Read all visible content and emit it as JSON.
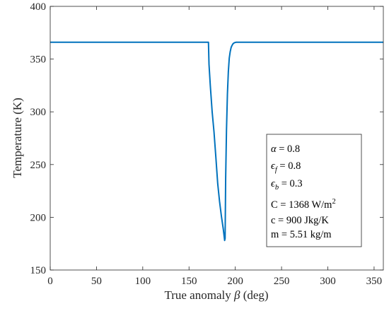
{
  "chart_data": {
    "type": "line",
    "xlabel": {
      "prefix": "True anomaly ",
      "symbol": "β",
      "suffix": " (deg)"
    },
    "ylabel": "Temperature (K)",
    "xlim": [
      0,
      360
    ],
    "ylim": [
      150,
      400
    ],
    "xticks": [
      "0",
      "50",
      "100",
      "150",
      "200",
      "250",
      "300",
      "350"
    ],
    "yticks": [
      "150",
      "200",
      "250",
      "300",
      "350",
      "400"
    ],
    "grid": false,
    "line_color": "#0072BD",
    "series": [
      {
        "x": [
          0,
          171,
          171.6,
          173,
          175,
          177,
          179,
          181,
          183,
          185,
          187,
          188.5,
          189,
          189.6,
          190.5,
          191.5,
          192.5,
          193.5,
          194.5,
          195.5,
          196.5,
          197.5,
          199,
          201,
          203,
          206,
          210,
          360
        ],
        "y": [
          366,
          366,
          345,
          325,
          300,
          281,
          257,
          232,
          215,
          201,
          189,
          178,
          180,
          237,
          283,
          317,
          338,
          351,
          357,
          361,
          363,
          364.5,
          365.5,
          366,
          366,
          366,
          366,
          366
        ]
      }
    ],
    "legend": {
      "placement": "bottom-right",
      "entries": [
        {
          "sym": "α",
          "sub": "",
          "text": " = 0.8"
        },
        {
          "sym": "ϵ",
          "sub": "f",
          "text": " = 0.8"
        },
        {
          "sym": "ϵ",
          "sub": "b",
          "text": " = 0.3"
        },
        {
          "plain": "C = 1368 W/m",
          "sup": "2"
        },
        {
          "plain": "c  = 900 Jkg/K"
        },
        {
          "plain": "m = 5.51 kg/m"
        }
      ]
    }
  }
}
